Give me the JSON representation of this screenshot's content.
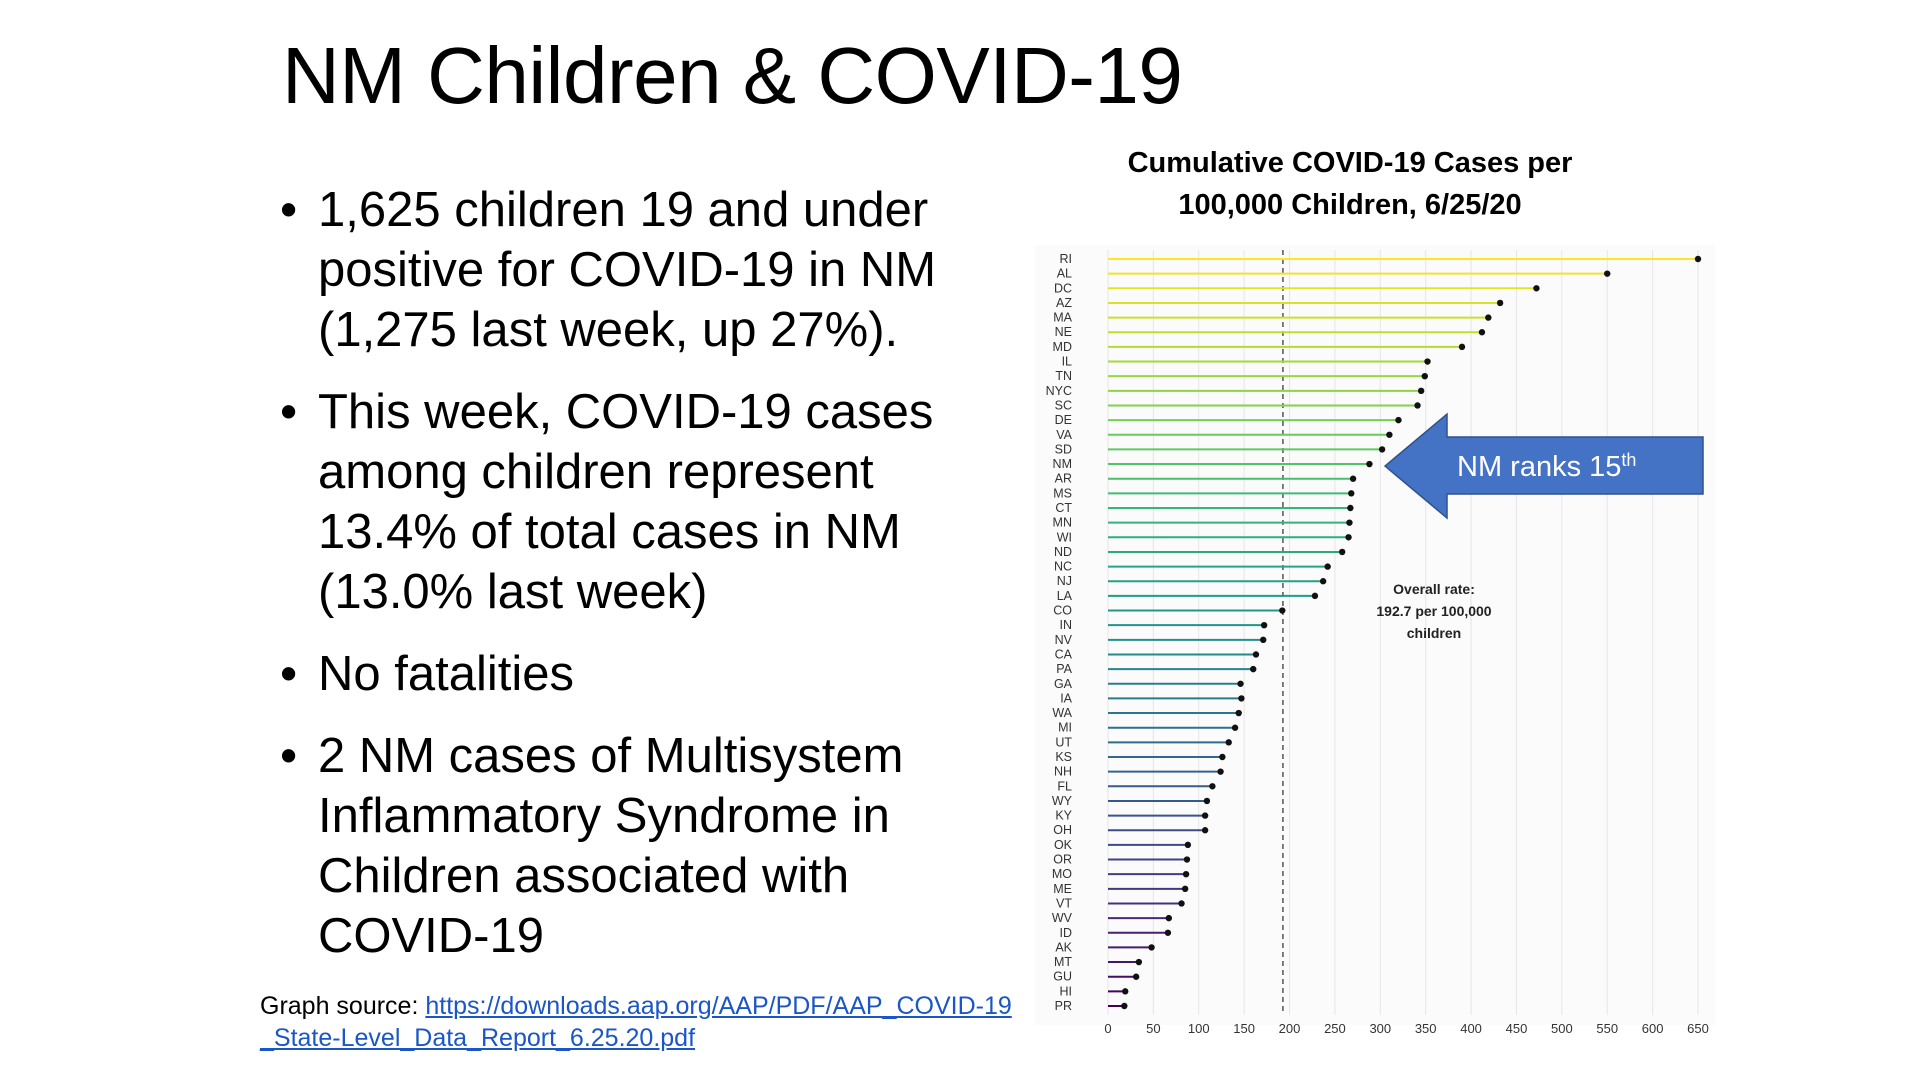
{
  "slide": {
    "title": "NM Children & COVID-19",
    "bullets": [
      "1,625 children 19 and under positive for COVID-19 in NM (1,275 last week, up 27%).",
      "This week, COVID-19 cases among children represent 13.4% of total cases in NM (13.0% last week)",
      "No fatalities",
      "2 NM cases of Multisystem Inflammatory Syndrome in Children associated with COVID-19"
    ],
    "source_label": "Graph source: ",
    "source_link": "https://downloads.aap.org/AAP/PDF/AAP_COVID-19_State-Level_Data_Report_6.25.20.pdf"
  },
  "chart_data": {
    "type": "lollipop",
    "title": "Cumulative COVID-19 Cases per\n100,000 Children, 6/25/20",
    "xlim": [
      0,
      650
    ],
    "xticks": [
      0,
      50,
      100,
      150,
      200,
      250,
      300,
      350,
      400,
      450,
      500,
      550,
      600,
      650
    ],
    "grid": true,
    "reference_line": {
      "value": 192.7,
      "style": "dashed"
    },
    "annotation": "Overall rate:\n192.7 per 100,000\nchildren",
    "callout": {
      "text": "NM ranks 15",
      "superscript": "th",
      "target": "NM",
      "color": "#4472c4"
    },
    "categories": [
      "RI",
      "AL",
      "DC",
      "AZ",
      "MA",
      "NE",
      "MD",
      "IL",
      "TN",
      "NYC",
      "SC",
      "DE",
      "VA",
      "SD",
      "NM",
      "AR",
      "MS",
      "CT",
      "MN",
      "WI",
      "ND",
      "NC",
      "NJ",
      "LA",
      "CO",
      "IN",
      "NV",
      "CA",
      "PA",
      "GA",
      "IA",
      "WA",
      "MI",
      "UT",
      "KS",
      "NH",
      "FL",
      "WY",
      "KY",
      "OH",
      "OK",
      "OR",
      "MO",
      "ME",
      "VT",
      "WV",
      "ID",
      "AK",
      "MT",
      "GU",
      "HI",
      "PR"
    ],
    "values": [
      650,
      550,
      472,
      432,
      419,
      412,
      390,
      352,
      349,
      345,
      341,
      320,
      310,
      302,
      288,
      270,
      268,
      267,
      266,
      265,
      258,
      242,
      237,
      228,
      192,
      172,
      171,
      163,
      160,
      146,
      147,
      144,
      140,
      133,
      126,
      124,
      115,
      109,
      107,
      107,
      88,
      87,
      86,
      85,
      81,
      67,
      66,
      48,
      34,
      31,
      19,
      18
    ]
  }
}
